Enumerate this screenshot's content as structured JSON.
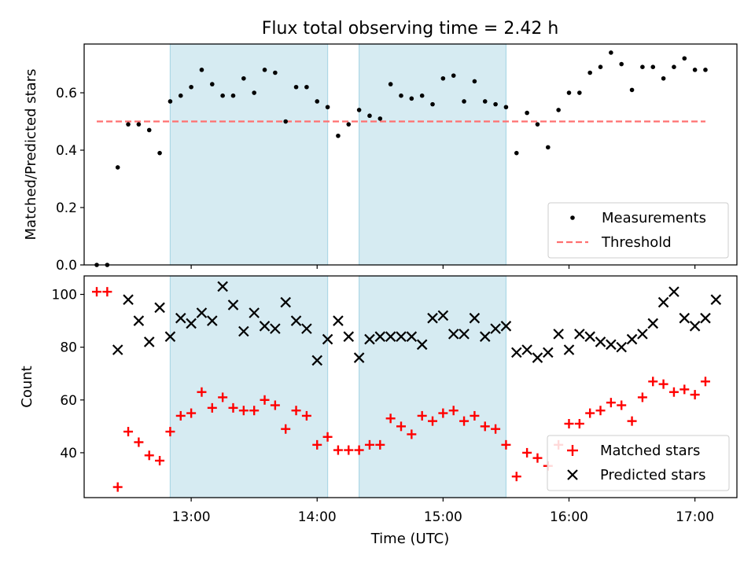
{
  "colors": {
    "band": "#add8e6",
    "measurements": "#000000",
    "threshold": "#ff7070",
    "matched": "#ff0000",
    "predicted": "#000000"
  },
  "chart_data": [
    {
      "type": "scatter",
      "title": "Flux total observing time = 2.42 h",
      "xlabel": "",
      "ylabel": "Matched/Predicted stars",
      "xlim": [
        "12:09",
        "17:20"
      ],
      "ylim": [
        0,
        0.77
      ],
      "yticks": [
        0.0,
        0.2,
        0.4,
        0.6
      ],
      "ytick_labels": [
        "0.0",
        "0.2",
        "0.4",
        "0.6"
      ],
      "shaded_intervals": [
        [
          "12:50",
          "14:05"
        ],
        [
          "14:20",
          "15:30"
        ]
      ],
      "legend": {
        "position": "lower-right",
        "entries": [
          "Measurements",
          "Threshold"
        ]
      },
      "threshold": {
        "name": "Threshold",
        "value": 0.5,
        "x_range": [
          "12:15",
          "17:05"
        ],
        "style": "dashed"
      },
      "series": [
        {
          "name": "Measurements",
          "marker": "dot",
          "points": [
            [
              "12:15",
              0.0
            ],
            [
              "12:20",
              0.0
            ],
            [
              "12:25",
              0.34
            ],
            [
              "12:30",
              0.49
            ],
            [
              "12:35",
              0.49
            ],
            [
              "12:40",
              0.47
            ],
            [
              "12:45",
              0.39
            ],
            [
              "12:50",
              0.57
            ],
            [
              "12:55",
              0.59
            ],
            [
              "13:00",
              0.62
            ],
            [
              "13:05",
              0.68
            ],
            [
              "13:10",
              0.63
            ],
            [
              "13:15",
              0.59
            ],
            [
              "13:20",
              0.59
            ],
            [
              "13:25",
              0.65
            ],
            [
              "13:30",
              0.6
            ],
            [
              "13:35",
              0.68
            ],
            [
              "13:40",
              0.67
            ],
            [
              "13:45",
              0.5
            ],
            [
              "13:50",
              0.62
            ],
            [
              "13:55",
              0.62
            ],
            [
              "14:00",
              0.57
            ],
            [
              "14:05",
              0.55
            ],
            [
              "14:10",
              0.45
            ],
            [
              "14:15",
              0.49
            ],
            [
              "14:20",
              0.54
            ],
            [
              "14:25",
              0.52
            ],
            [
              "14:30",
              0.51
            ],
            [
              "14:35",
              0.63
            ],
            [
              "14:40",
              0.59
            ],
            [
              "14:45",
              0.58
            ],
            [
              "14:50",
              0.59
            ],
            [
              "14:55",
              0.56
            ],
            [
              "15:00",
              0.65
            ],
            [
              "15:05",
              0.66
            ],
            [
              "15:10",
              0.57
            ],
            [
              "15:15",
              0.64
            ],
            [
              "15:20",
              0.57
            ],
            [
              "15:25",
              0.56
            ],
            [
              "15:30",
              0.55
            ],
            [
              "15:35",
              0.39
            ],
            [
              "15:40",
              0.53
            ],
            [
              "15:45",
              0.49
            ],
            [
              "15:50",
              0.41
            ],
            [
              "15:55",
              0.54
            ],
            [
              "16:00",
              0.6
            ],
            [
              "16:05",
              0.6
            ],
            [
              "16:10",
              0.67
            ],
            [
              "16:15",
              0.69
            ],
            [
              "16:20",
              0.74
            ],
            [
              "16:25",
              0.7
            ],
            [
              "16:30",
              0.61
            ],
            [
              "16:35",
              0.69
            ],
            [
              "16:40",
              0.69
            ],
            [
              "16:45",
              0.65
            ],
            [
              "16:50",
              0.69
            ],
            [
              "16:55",
              0.72
            ],
            [
              "17:00",
              0.68
            ],
            [
              "17:05",
              0.68
            ]
          ]
        }
      ]
    },
    {
      "type": "scatter",
      "title": "",
      "xlabel": "Time (UTC)",
      "ylabel": "Count",
      "xlim": [
        "12:09",
        "17:20"
      ],
      "ylim": [
        23,
        107
      ],
      "xticks": [
        "13:00",
        "14:00",
        "15:00",
        "16:00",
        "17:00"
      ],
      "yticks": [
        40,
        60,
        80,
        100
      ],
      "shaded_intervals": [
        [
          "12:50",
          "14:05"
        ],
        [
          "14:20",
          "15:30"
        ]
      ],
      "legend": {
        "position": "lower-right",
        "entries": [
          "Matched stars",
          "Predicted stars"
        ]
      },
      "series": [
        {
          "name": "Matched stars",
          "marker": "plus",
          "points": [
            [
              "12:15",
              101
            ],
            [
              "12:20",
              101
            ],
            [
              "12:25",
              27
            ],
            [
              "12:30",
              48
            ],
            [
              "12:35",
              44
            ],
            [
              "12:40",
              39
            ],
            [
              "12:45",
              37
            ],
            [
              "12:50",
              48
            ],
            [
              "12:55",
              54
            ],
            [
              "13:00",
              55
            ],
            [
              "13:05",
              63
            ],
            [
              "13:10",
              57
            ],
            [
              "13:15",
              61
            ],
            [
              "13:20",
              57
            ],
            [
              "13:25",
              56
            ],
            [
              "13:30",
              56
            ],
            [
              "13:35",
              60
            ],
            [
              "13:40",
              58
            ],
            [
              "13:45",
              49
            ],
            [
              "13:50",
              56
            ],
            [
              "13:55",
              54
            ],
            [
              "14:00",
              43
            ],
            [
              "14:05",
              46
            ],
            [
              "14:10",
              41
            ],
            [
              "14:15",
              41
            ],
            [
              "14:20",
              41
            ],
            [
              "14:25",
              43
            ],
            [
              "14:30",
              43
            ],
            [
              "14:35",
              53
            ],
            [
              "14:40",
              50
            ],
            [
              "14:45",
              47
            ],
            [
              "14:50",
              54
            ],
            [
              "14:55",
              52
            ],
            [
              "15:00",
              55
            ],
            [
              "15:05",
              56
            ],
            [
              "15:10",
              52
            ],
            [
              "15:15",
              54
            ],
            [
              "15:20",
              50
            ],
            [
              "15:25",
              49
            ],
            [
              "15:30",
              43
            ],
            [
              "15:35",
              31
            ],
            [
              "15:40",
              40
            ],
            [
              "15:45",
              38
            ],
            [
              "15:50",
              35
            ],
            [
              "15:55",
              43
            ],
            [
              "16:00",
              51
            ],
            [
              "16:05",
              51
            ],
            [
              "16:10",
              55
            ],
            [
              "16:15",
              56
            ],
            [
              "16:20",
              59
            ],
            [
              "16:25",
              58
            ],
            [
              "16:30",
              52
            ],
            [
              "16:35",
              61
            ],
            [
              "16:40",
              67
            ],
            [
              "16:45",
              66
            ],
            [
              "16:50",
              63
            ],
            [
              "16:55",
              64
            ],
            [
              "17:00",
              62
            ],
            [
              "17:05",
              67
            ]
          ]
        },
        {
          "name": "Predicted stars",
          "marker": "x",
          "points": [
            [
              "12:25",
              79
            ],
            [
              "12:30",
              98
            ],
            [
              "12:35",
              90
            ],
            [
              "12:40",
              82
            ],
            [
              "12:45",
              95
            ],
            [
              "12:50",
              84
            ],
            [
              "12:55",
              91
            ],
            [
              "13:00",
              89
            ],
            [
              "13:05",
              93
            ],
            [
              "13:10",
              90
            ],
            [
              "13:15",
              103
            ],
            [
              "13:20",
              96
            ],
            [
              "13:25",
              86
            ],
            [
              "13:30",
              93
            ],
            [
              "13:35",
              88
            ],
            [
              "13:40",
              87
            ],
            [
              "13:45",
              97
            ],
            [
              "13:50",
              90
            ],
            [
              "13:55",
              87
            ],
            [
              "14:00",
              75
            ],
            [
              "14:05",
              83
            ],
            [
              "14:10",
              90
            ],
            [
              "14:15",
              84
            ],
            [
              "14:20",
              76
            ],
            [
              "14:25",
              83
            ],
            [
              "14:30",
              84
            ],
            [
              "14:35",
              84
            ],
            [
              "14:40",
              84
            ],
            [
              "14:45",
              84
            ],
            [
              "14:50",
              81
            ],
            [
              "14:55",
              91
            ],
            [
              "15:00",
              92
            ],
            [
              "15:05",
              85
            ],
            [
              "15:10",
              85
            ],
            [
              "15:15",
              91
            ],
            [
              "15:20",
              84
            ],
            [
              "15:25",
              87
            ],
            [
              "15:30",
              88
            ],
            [
              "15:35",
              78
            ],
            [
              "15:40",
              79
            ],
            [
              "15:45",
              76
            ],
            [
              "15:50",
              78
            ],
            [
              "15:55",
              85
            ],
            [
              "16:00",
              79
            ],
            [
              "16:05",
              85
            ],
            [
              "16:10",
              84
            ],
            [
              "16:15",
              82
            ],
            [
              "16:20",
              81
            ],
            [
              "16:25",
              80
            ],
            [
              "16:30",
              83
            ],
            [
              "16:35",
              85
            ],
            [
              "16:40",
              89
            ],
            [
              "16:45",
              97
            ],
            [
              "16:50",
              101
            ],
            [
              "16:55",
              91
            ],
            [
              "17:00",
              88
            ],
            [
              "17:05",
              91
            ],
            [
              "17:10",
              98
            ]
          ]
        }
      ]
    }
  ]
}
